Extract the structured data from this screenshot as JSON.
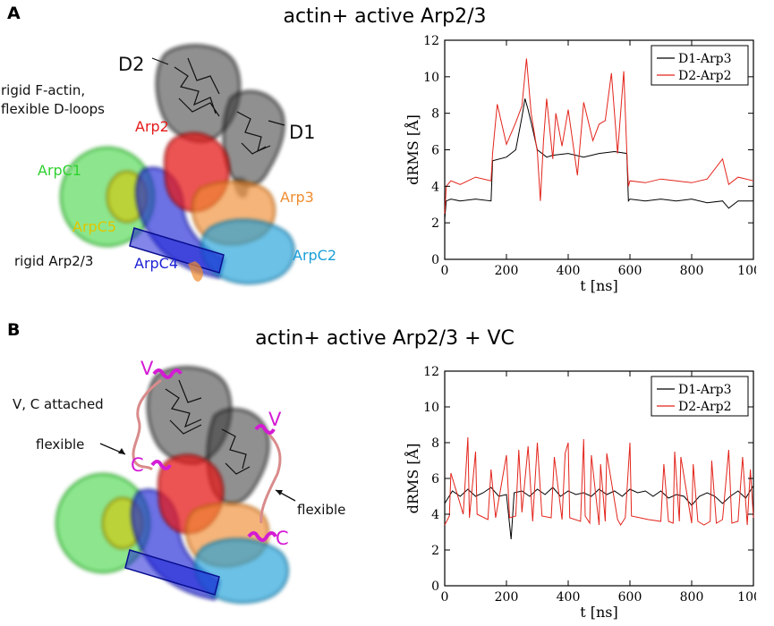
{
  "panels": [
    {
      "letter": "A",
      "title": "actin+ active Arp2/3",
      "labels": {
        "d2": "D2",
        "d1": "D1",
        "rigid_factin": "rigid F-actin,",
        "flexible_dloops": "flexible D-loops",
        "arp2": "Arp2",
        "arpc1": "ArpC1",
        "arp3": "Arp3",
        "arpc5": "ArpC5",
        "rigid_arp23": "rigid Arp2/3",
        "arpc4": "ArpC4",
        "arpc2": "ArpC2"
      },
      "chart_data": {
        "type": "line",
        "xlabel": "t [ns]",
        "ylabel": "dRMS [Å]",
        "xlim": [
          0,
          1000
        ],
        "ylim": [
          0,
          12
        ],
        "xticks": [
          0,
          200,
          400,
          600,
          800,
          1000
        ],
        "yticks": [
          0,
          2,
          4,
          6,
          8,
          10,
          12
        ],
        "legend_position": "top-right",
        "series": [
          {
            "name": "D1-Arp3",
            "color": "#000000",
            "x": [
              0,
              5,
              20,
              50,
              100,
              150,
              155,
              200,
              230,
              250,
              260,
              270,
              280,
              300,
              330,
              350,
              400,
              450,
              500,
              550,
              590,
              595,
              600,
              650,
              700,
              750,
              800,
              850,
              900,
              920,
              950,
              1000
            ],
            "y": [
              2.2,
              3.2,
              3.3,
              3.2,
              3.3,
              3.2,
              5.4,
              5.6,
              6.0,
              7.8,
              8.8,
              8.2,
              7.5,
              6.0,
              5.6,
              5.7,
              5.8,
              5.6,
              5.8,
              5.9,
              5.8,
              3.2,
              3.3,
              3.2,
              3.3,
              3.2,
              3.3,
              3.1,
              3.2,
              2.8,
              3.2,
              3.2
            ]
          },
          {
            "name": "D2-Arp2",
            "color": "#e3241b",
            "x": [
              0,
              5,
              20,
              50,
              100,
              150,
              155,
              170,
              200,
              230,
              250,
              265,
              280,
              300,
              310,
              320,
              330,
              350,
              360,
              380,
              400,
              420,
              430,
              450,
              480,
              500,
              520,
              540,
              560,
              580,
              590,
              595,
              600,
              650,
              700,
              750,
              800,
              850,
              900,
              920,
              950,
              1000
            ],
            "y": [
              2.5,
              4.0,
              4.3,
              4.1,
              4.5,
              4.3,
              5.8,
              8.5,
              6.3,
              7.5,
              8.4,
              11.0,
              8.0,
              5.9,
              3.2,
              6.5,
              8.8,
              5.5,
              8.0,
              6.2,
              8.2,
              5.8,
              4.6,
              8.6,
              6.5,
              7.4,
              7.6,
              10.2,
              5.8,
              10.3,
              5.9,
              4.0,
              4.3,
              4.2,
              4.4,
              4.3,
              4.2,
              4.4,
              5.5,
              4.1,
              4.5,
              4.3
            ]
          }
        ]
      }
    },
    {
      "letter": "B",
      "title": "actin+ active Arp2/3 + VC",
      "labels": {
        "v_top": "V",
        "vc_attached": "V, C attached",
        "v_right": "V",
        "flexible_left": "flexible",
        "c_left": "C",
        "flexible_right": "flexible",
        "c_right": "C"
      },
      "chart_data": {
        "type": "line",
        "xlabel": "t [ns]",
        "ylabel": "dRMS [Å]",
        "xlim": [
          0,
          1000
        ],
        "ylim": [
          0,
          12
        ],
        "xticks": [
          0,
          200,
          400,
          600,
          800,
          1000
        ],
        "yticks": [
          0,
          2,
          4,
          6,
          8,
          10,
          12
        ],
        "legend_position": "top-right",
        "series": [
          {
            "name": "D1-Arp3",
            "color": "#000000",
            "x": [
              0,
              25,
              50,
              75,
              100,
              125,
              150,
              175,
              200,
              215,
              225,
              250,
              275,
              300,
              325,
              350,
              375,
              400,
              425,
              450,
              475,
              500,
              525,
              550,
              575,
              600,
              625,
              650,
              675,
              700,
              725,
              750,
              775,
              800,
              825,
              850,
              875,
              900,
              925,
              950,
              975,
              1000
            ],
            "y": [
              4.6,
              5.3,
              5.0,
              5.4,
              5.0,
              5.2,
              5.5,
              5.0,
              5.1,
              2.6,
              5.2,
              5.3,
              5.0,
              5.4,
              5.1,
              5.5,
              5.0,
              5.3,
              5.1,
              5.2,
              5.0,
              5.4,
              5.1,
              5.3,
              5.0,
              5.4,
              5.2,
              5.3,
              5.0,
              5.3,
              4.9,
              5.1,
              5.0,
              4.5,
              5.0,
              5.2,
              5.0,
              4.6,
              5.0,
              5.3,
              4.9,
              5.6
            ]
          },
          {
            "name": "D2-Arp2",
            "color": "#e3241b",
            "x": [
              0,
              15,
              20,
              60,
              75,
              80,
              100,
              105,
              140,
              150,
              165,
              200,
              210,
              230,
              240,
              250,
              270,
              285,
              300,
              315,
              345,
              355,
              380,
              390,
              400,
              405,
              440,
              450,
              455,
              470,
              475,
              500,
              505,
              520,
              525,
              560,
              570,
              585,
              600,
              605,
              660,
              700,
              710,
              725,
              740,
              745,
              760,
              765,
              800,
              805,
              820,
              840,
              860,
              865,
              880,
              900,
              920,
              930,
              950,
              965,
              980,
              990,
              1000
            ],
            "y": [
              3.4,
              3.9,
              6.3,
              4.0,
              8.3,
              3.8,
              7.5,
              4.0,
              3.7,
              6.5,
              3.8,
              7.3,
              3.8,
              3.9,
              7.6,
              4.1,
              7.8,
              3.6,
              8.0,
              3.9,
              3.8,
              7.2,
              3.7,
              7.4,
              8.0,
              3.8,
              3.6,
              8.2,
              3.9,
              3.5,
              7.3,
              3.4,
              6.8,
              3.6,
              7.4,
              3.7,
              3.4,
              3.8,
              8.0,
              3.9,
              3.7,
              3.6,
              6.8,
              3.6,
              3.5,
              7.5,
              3.6,
              7.2,
              3.5,
              6.8,
              3.6,
              3.4,
              3.6,
              7.0,
              3.5,
              3.7,
              7.6,
              3.5,
              3.6,
              7.2,
              3.4,
              6.5,
              3.8
            ]
          }
        ]
      }
    }
  ],
  "colors": {
    "actin": "#4a4a4a",
    "arp2": "#e51b1b",
    "arp3": "#f08c2e",
    "arpc1": "#2fd12f",
    "arpc2": "#1a9fd8",
    "arpc4": "#1d22d6",
    "arpc5": "#e0c500",
    "vc": "#d41bd4",
    "d1_line": "#000000",
    "d2_line": "#e3241b"
  }
}
